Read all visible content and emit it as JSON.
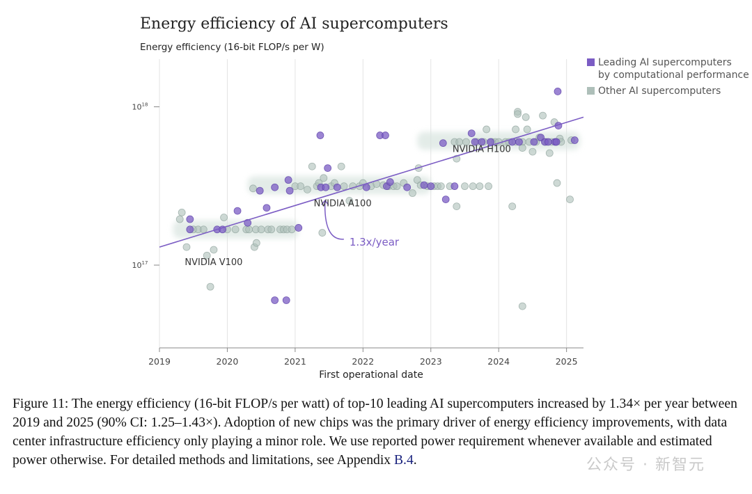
{
  "chart_data": {
    "type": "scatter",
    "title": "Energy efficiency of AI supercomputers",
    "ylabel": "Energy efficiency (16-bit FLOP/s per W)",
    "xlabel": "First operational date",
    "y_scale": "log",
    "xlim": [
      2019,
      2025.25
    ],
    "ylim": [
      3e+16,
      2e+18
    ],
    "x_ticks": [
      "2019",
      "2020",
      "2021",
      "2022",
      "2023",
      "2024",
      "2025"
    ],
    "y_ticks": [
      {
        "value": 1e+17,
        "base": "10",
        "exp": "17"
      },
      {
        "value": 1e+18,
        "base": "10",
        "exp": "18"
      }
    ],
    "grid": "vertical",
    "legend_position": "top-right",
    "legend": [
      {
        "label_lines": [
          "Leading AI supercomputers",
          "by computational performance"
        ],
        "color": "#7b5cc4"
      },
      {
        "label_lines": [
          "Other AI supercomputers"
        ],
        "color": "#aebfb9"
      }
    ],
    "trend_line": {
      "x": [
        2019,
        2025.25
      ],
      "y": [
        1.3e+17,
        8.6e+17
      ],
      "label": "1.3x/year",
      "label_x": 2021.8,
      "label_y": 1.4e+17,
      "color": "#7b5cc4"
    },
    "chip_annotations": [
      {
        "label": "NVIDIA V100",
        "x": 2019.8,
        "y": 1.04e+17
      },
      {
        "label": "NVIDIA A100",
        "x": 2021.7,
        "y": 2.45e+17
      },
      {
        "label": "NVIDIA H100",
        "x": 2023.75,
        "y": 5.4e+17
      }
    ],
    "chip_bands": [
      {
        "x": [
          2019.2,
          2021.05
        ],
        "y": 1.68e+17
      },
      {
        "x": [
          2020.3,
          2023.0
        ],
        "y": 3.2e+17
      },
      {
        "x": [
          2022.8,
          2025.2
        ],
        "y": 6.1e+17
      }
    ],
    "series": [
      {
        "name": "Leading AI supercomputers by computational performance",
        "color": "#7b5cc4",
        "points": [
          [
            2019.45,
            1.95e+17
          ],
          [
            2019.45,
            1.68e+17
          ],
          [
            2019.85,
            1.68e+17
          ],
          [
            2019.93,
            1.68e+17
          ],
          [
            2020.15,
            2.2e+17
          ],
          [
            2020.3,
            1.85e+17
          ],
          [
            2020.48,
            2.95e+17
          ],
          [
            2020.58,
            2.3e+17
          ],
          [
            2020.7,
            3.1e+17
          ],
          [
            2020.9,
            3.45e+17
          ],
          [
            2020.92,
            2.95e+17
          ],
          [
            2020.7,
            6e+16
          ],
          [
            2020.87,
            6e+16
          ],
          [
            2021.05,
            1.72e+17
          ],
          [
            2021.37,
            6.6e+17
          ],
          [
            2021.38,
            3.1e+17
          ],
          [
            2021.45,
            3.1e+17
          ],
          [
            2021.48,
            4.1e+17
          ],
          [
            2021.62,
            3.1e+17
          ],
          [
            2022.05,
            3.1e+17
          ],
          [
            2022.25,
            6.6e+17
          ],
          [
            2022.33,
            6.6e+17
          ],
          [
            2022.35,
            3.15e+17
          ],
          [
            2022.4,
            3.35e+17
          ],
          [
            2022.65,
            3.1e+17
          ],
          [
            2022.9,
            3.2e+17
          ],
          [
            2023.0,
            3.15e+17
          ],
          [
            2023.18,
            5.9e+17
          ],
          [
            2023.22,
            2.6e+17
          ],
          [
            2023.35,
            3.15e+17
          ],
          [
            2023.6,
            6.8e+17
          ],
          [
            2023.65,
            6e+17
          ],
          [
            2023.75,
            6e+17
          ],
          [
            2023.88,
            6e+17
          ],
          [
            2024.2,
            6e+17
          ],
          [
            2024.3,
            6e+17
          ],
          [
            2024.52,
            6e+17
          ],
          [
            2024.62,
            6.4e+17
          ],
          [
            2024.68,
            6e+17
          ],
          [
            2024.73,
            6e+17
          ],
          [
            2024.83,
            6e+17
          ],
          [
            2024.85,
            6e+17
          ],
          [
            2024.87,
            1.25e+18
          ],
          [
            2024.88,
            7.6e+17
          ],
          [
            2025.12,
            6.15e+17
          ]
        ]
      },
      {
        "name": "Other AI supercomputers",
        "color": "#aebfb9",
        "points": [
          [
            2019.3,
            1.95e+17
          ],
          [
            2019.33,
            2.15e+17
          ],
          [
            2019.4,
            1.3e+17
          ],
          [
            2019.5,
            1.68e+17
          ],
          [
            2019.57,
            1.68e+17
          ],
          [
            2019.65,
            1.68e+17
          ],
          [
            2019.7,
            1.15e+17
          ],
          [
            2019.75,
            7.3e+16
          ],
          [
            2019.8,
            1.25e+17
          ],
          [
            2019.95,
            2e+17
          ],
          [
            2020.0,
            1.68e+17
          ],
          [
            2020.12,
            1.68e+17
          ],
          [
            2020.28,
            1.68e+17
          ],
          [
            2020.32,
            1.68e+17
          ],
          [
            2020.38,
            3.05e+17
          ],
          [
            2020.4,
            1.3e+17
          ],
          [
            2020.42,
            1.68e+17
          ],
          [
            2020.43,
            1.38e+17
          ],
          [
            2020.5,
            1.68e+17
          ],
          [
            2020.6,
            1.68e+17
          ],
          [
            2020.65,
            1.68e+17
          ],
          [
            2020.78,
            1.68e+17
          ],
          [
            2020.83,
            1.68e+17
          ],
          [
            2020.88,
            1.68e+17
          ],
          [
            2020.95,
            1.68e+17
          ],
          [
            2021.0,
            3.15e+17
          ],
          [
            2021.08,
            3.15e+17
          ],
          [
            2021.18,
            3e+17
          ],
          [
            2021.25,
            4.2e+17
          ],
          [
            2021.32,
            3.15e+17
          ],
          [
            2021.35,
            3.3e+17
          ],
          [
            2021.4,
            1.6e+17
          ],
          [
            2021.42,
            3.55e+17
          ],
          [
            2021.53,
            3.15e+17
          ],
          [
            2021.58,
            3.3e+17
          ],
          [
            2021.68,
            4.2e+17
          ],
          [
            2021.72,
            3.15e+17
          ],
          [
            2021.8,
            2.55e+17
          ],
          [
            2021.85,
            3.15e+17
          ],
          [
            2021.95,
            3.15e+17
          ],
          [
            2022.0,
            3.3e+17
          ],
          [
            2022.12,
            3.15e+17
          ],
          [
            2022.2,
            3.25e+17
          ],
          [
            2022.3,
            3.2e+17
          ],
          [
            2022.38,
            3.15e+17
          ],
          [
            2022.45,
            3.15e+17
          ],
          [
            2022.5,
            3.15e+17
          ],
          [
            2022.6,
            3.3e+17
          ],
          [
            2022.73,
            2.85e+17
          ],
          [
            2022.8,
            3.45e+17
          ],
          [
            2022.82,
            4.1e+17
          ],
          [
            2022.85,
            3.2e+17
          ],
          [
            2022.95,
            3.15e+17
          ],
          [
            2023.05,
            3.15e+17
          ],
          [
            2023.1,
            3.15e+17
          ],
          [
            2023.15,
            3.15e+17
          ],
          [
            2023.28,
            3.15e+17
          ],
          [
            2023.35,
            6e+17
          ],
          [
            2023.38,
            4.7e+17
          ],
          [
            2023.38,
            2.35e+17
          ],
          [
            2023.42,
            6e+17
          ],
          [
            2023.5,
            3.15e+17
          ],
          [
            2023.52,
            6e+17
          ],
          [
            2023.62,
            3.15e+17
          ],
          [
            2023.68,
            6e+17
          ],
          [
            2023.72,
            3.15e+17
          ],
          [
            2023.78,
            6e+17
          ],
          [
            2023.82,
            7.2e+17
          ],
          [
            2023.85,
            3.15e+17
          ],
          [
            2023.9,
            6e+17
          ],
          [
            2023.95,
            6e+17
          ],
          [
            2024.0,
            6e+17
          ],
          [
            2024.1,
            6e+17
          ],
          [
            2024.15,
            6e+17
          ],
          [
            2024.2,
            2.35e+17
          ],
          [
            2024.25,
            6e+17
          ],
          [
            2024.25,
            7.2e+17
          ],
          [
            2024.28,
            9.3e+17
          ],
          [
            2024.28,
            9e+17
          ],
          [
            2024.35,
            6e+17
          ],
          [
            2024.35,
            5.5e+17
          ],
          [
            2024.35,
            5.5e+16
          ],
          [
            2024.4,
            8.6e+17
          ],
          [
            2024.42,
            7.2e+17
          ],
          [
            2024.45,
            6e+17
          ],
          [
            2024.5,
            5.2e+17
          ],
          [
            2024.55,
            6e+17
          ],
          [
            2024.6,
            6.4e+17
          ],
          [
            2024.65,
            8.8e+17
          ],
          [
            2024.7,
            6e+17
          ],
          [
            2024.75,
            5.1e+17
          ],
          [
            2024.78,
            6e+17
          ],
          [
            2024.82,
            8e+17
          ],
          [
            2024.85,
            6e+17
          ],
          [
            2024.86,
            3.3e+17
          ],
          [
            2024.9,
            6.3e+17
          ],
          [
            2024.92,
            6e+17
          ],
          [
            2025.05,
            2.6e+17
          ],
          [
            2025.07,
            6.15e+17
          ]
        ]
      }
    ]
  },
  "caption": {
    "text": "Figure 11: The energy efficiency (16-bit FLOP/s per watt) of top-10 leading AI supercomputers increased by 1.34× per year between 2019 and 2025 (90% CI: 1.25–1.43×). Adoption of new chips was the primary driver of energy efficiency improvements, with data center infrastructure efficiency only playing a minor role. We use reported power requirement whenever available and estimated power otherwise. For detailed methods and limitations, see Appendix ",
    "link": "B.4",
    "end": "."
  },
  "watermark": "公众号 · 新智元"
}
